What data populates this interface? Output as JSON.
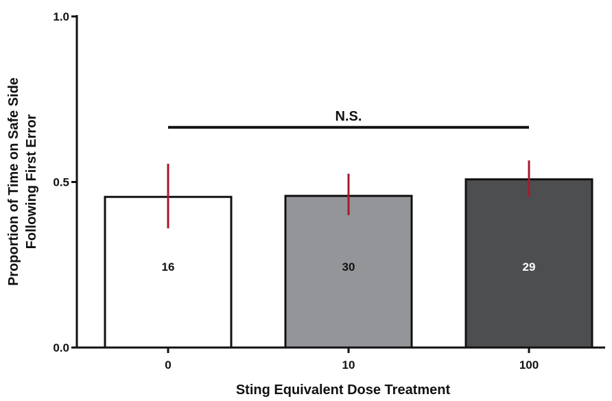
{
  "chart_data": {
    "type": "bar",
    "categories": [
      "0",
      "10",
      "100"
    ],
    "values": [
      0.455,
      0.458,
      0.508
    ],
    "error_low": [
      0.36,
      0.4,
      0.455
    ],
    "error_high": [
      0.555,
      0.525,
      0.565
    ],
    "bar_labels": [
      "16",
      "30",
      "29"
    ],
    "bar_colors": [
      "#ffffff",
      "#939598",
      "#4d4e50"
    ],
    "bar_label_colors": [
      "#111111",
      "#111111",
      "#ffffff"
    ],
    "error_color": "#a6192e",
    "xlabel": "Sting Equivalent Dose Treatment",
    "ylabel_lines": [
      "Proportion of Time on Safe Side",
      "Following First Error"
    ],
    "ylim": [
      0,
      1
    ],
    "y_ticks": [
      0.0,
      0.5,
      1.0
    ],
    "y_tick_labels": [
      "0.0",
      "0.5",
      "1.0"
    ],
    "significance": {
      "label": "N.S.",
      "y": 0.665,
      "from": "0",
      "to": "100"
    },
    "grid": false,
    "legend": "none"
  }
}
